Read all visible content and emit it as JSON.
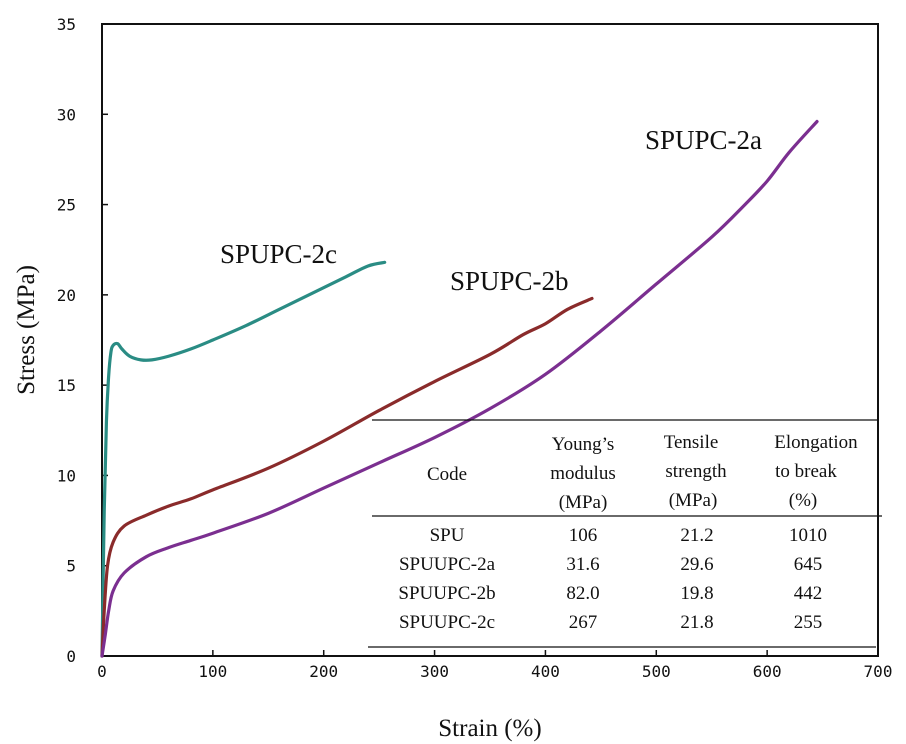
{
  "chart_data": {
    "type": "line",
    "xlabel": "Strain (%)",
    "ylabel": "Stress (MPa)",
    "xlim": [
      0,
      700
    ],
    "ylim": [
      0,
      35
    ],
    "xticks": [
      "0",
      "100",
      "200",
      "300",
      "400",
      "500",
      "600",
      "700"
    ],
    "yticks": [
      "0",
      "5",
      "10",
      "15",
      "20",
      "25",
      "30",
      "35"
    ],
    "grid": false,
    "series": [
      {
        "name": "SPUPC-2c",
        "color": "#2a8c84",
        "x": [
          0,
          2,
          4,
          6,
          8,
          10,
          14,
          18,
          25,
          35,
          45,
          60,
          80,
          100,
          130,
          160,
          190,
          220,
          240,
          255
        ],
        "y": [
          0,
          8,
          13,
          15.5,
          16.8,
          17.2,
          17.3,
          17.0,
          16.6,
          16.4,
          16.4,
          16.6,
          17.0,
          17.5,
          18.3,
          19.2,
          20.1,
          21.0,
          21.6,
          21.8
        ]
      },
      {
        "name": "SPUPC-2b",
        "color": "#8a2b2b",
        "x": [
          0,
          2,
          5,
          10,
          20,
          40,
          60,
          80,
          100,
          150,
          200,
          250,
          300,
          350,
          380,
          400,
          420,
          442
        ],
        "y": [
          0,
          2.5,
          5.0,
          6.3,
          7.2,
          7.8,
          8.3,
          8.7,
          9.2,
          10.4,
          11.9,
          13.6,
          15.2,
          16.7,
          17.8,
          18.4,
          19.2,
          19.8
        ]
      },
      {
        "name": "SPUPC-2a",
        "color": "#7b2f90",
        "x": [
          0,
          3,
          6,
          10,
          20,
          40,
          60,
          80,
          100,
          150,
          200,
          250,
          300,
          350,
          400,
          450,
          500,
          550,
          580,
          600,
          620,
          645
        ],
        "y": [
          0,
          1.2,
          2.5,
          3.6,
          4.6,
          5.5,
          6.0,
          6.4,
          6.8,
          7.9,
          9.3,
          10.7,
          12.1,
          13.7,
          15.6,
          18.0,
          20.6,
          23.2,
          25.0,
          26.3,
          27.9,
          29.6
        ]
      }
    ],
    "table": {
      "header_row1": [
        "Code",
        "Young’s",
        "Tensile",
        "Elongation"
      ],
      "header_row2": [
        "",
        "modulus",
        "strength",
        "to break"
      ],
      "header_row3": [
        "",
        "(MPa)",
        "(MPa)",
        "(%)"
      ],
      "rows": [
        [
          "SPU",
          "106",
          "21.2",
          "1010"
        ],
        [
          "SPUUPC-2a",
          "31.6",
          "29.6",
          "645"
        ],
        [
          "SPUUPC-2b",
          "82.0",
          "19.8",
          "442"
        ],
        [
          "SPUUPC-2c",
          "267",
          "21.8",
          "255"
        ]
      ]
    }
  }
}
